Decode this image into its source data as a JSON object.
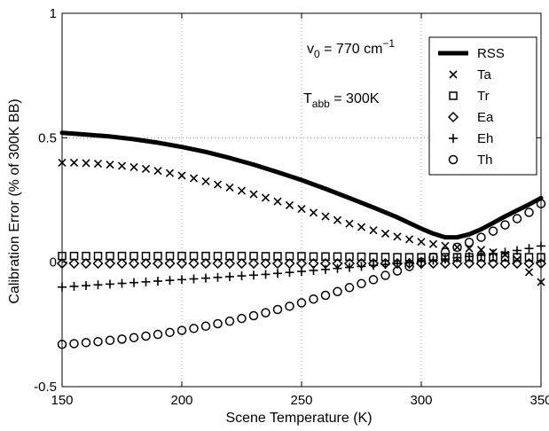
{
  "chart_data": {
    "type": "scatter",
    "title": "",
    "xlabel": "Scene Temperature (K)",
    "ylabel": "Calibration Error (% of 300K BB)",
    "xlim": [
      150,
      350
    ],
    "ylim": [
      -0.5,
      1
    ],
    "xticks": [
      "150",
      "200",
      "250",
      "300",
      "350"
    ],
    "yticks": [
      "-0.5",
      "0",
      "0.5",
      "1"
    ],
    "grid": "dotted",
    "legend": {
      "placement": "top-right",
      "entries": [
        "RSS",
        "Ta",
        "Tr",
        "Ea",
        "Eh",
        "Th"
      ]
    },
    "annotations": {
      "nu_symbol": "v",
      "nu_sub": "0",
      "nu_value": " = 770 cm",
      "nu_sup": "−1",
      "tabb_symbol": "T",
      "tabb_sub": "abb",
      "tabb_value": " = 300K"
    },
    "x": [
      150,
      155,
      160,
      165,
      170,
      175,
      180,
      185,
      190,
      195,
      200,
      205,
      210,
      215,
      220,
      225,
      230,
      235,
      240,
      245,
      250,
      255,
      260,
      265,
      270,
      275,
      280,
      285,
      290,
      295,
      300,
      305,
      310,
      315,
      320,
      325,
      330,
      335,
      340,
      345,
      350
    ],
    "series": [
      {
        "name": "RSS",
        "style": "line",
        "x": [
          150,
          160,
          170,
          180,
          190,
          200,
          210,
          220,
          230,
          240,
          250,
          260,
          270,
          280,
          290,
          300,
          305,
          310,
          315,
          320,
          325,
          330,
          335,
          340,
          345,
          350
        ],
        "values": [
          0.52,
          0.513,
          0.505,
          0.494,
          0.48,
          0.463,
          0.443,
          0.419,
          0.392,
          0.362,
          0.33,
          0.295,
          0.258,
          0.22,
          0.18,
          0.135,
          0.115,
          0.1,
          0.1,
          0.112,
          0.132,
          0.158,
          0.184,
          0.208,
          0.232,
          0.258
        ]
      },
      {
        "name": "Ta",
        "marker": "x",
        "values": [
          0.4,
          0.4,
          0.398,
          0.396,
          0.392,
          0.387,
          0.382,
          0.375,
          0.367,
          0.358,
          0.348,
          0.337,
          0.325,
          0.312,
          0.3,
          0.287,
          0.273,
          0.259,
          0.244,
          0.229,
          0.214,
          0.199,
          0.184,
          0.169,
          0.155,
          0.141,
          0.128,
          0.115,
          0.103,
          0.092,
          0.082,
          0.073,
          0.066,
          0.06,
          0.055,
          0.05,
          0.04,
          0.03,
          0.01,
          -0.04,
          -0.08
        ]
      },
      {
        "name": "Tr",
        "marker": "square",
        "values": [
          0.025,
          0.025,
          0.025,
          0.025,
          0.025,
          0.025,
          0.025,
          0.025,
          0.025,
          0.025,
          0.025,
          0.025,
          0.025,
          0.025,
          0.025,
          0.025,
          0.025,
          0.024,
          0.024,
          0.024,
          0.024,
          0.023,
          0.023,
          0.023,
          0.022,
          0.022,
          0.021,
          0.021,
          0.02,
          0.02,
          0.02,
          0.02,
          0.02,
          0.02,
          0.02,
          0.02,
          0.02,
          0.02,
          0.02,
          0.02,
          0.02
        ]
      },
      {
        "name": "Ea",
        "marker": "diamond",
        "values": [
          -0.005,
          -0.005,
          -0.005,
          -0.005,
          -0.005,
          -0.005,
          -0.005,
          -0.005,
          -0.005,
          -0.005,
          -0.005,
          -0.005,
          -0.005,
          -0.005,
          -0.005,
          -0.005,
          -0.005,
          -0.005,
          -0.005,
          -0.005,
          -0.005,
          -0.005,
          -0.005,
          -0.005,
          -0.005,
          -0.005,
          -0.005,
          -0.005,
          -0.005,
          -0.005,
          -0.005,
          -0.005,
          -0.005,
          -0.005,
          -0.005,
          -0.005,
          -0.005,
          -0.005,
          -0.005,
          -0.005,
          -0.005
        ]
      },
      {
        "name": "Eh",
        "marker": "plus",
        "values": [
          -0.1,
          -0.097,
          -0.094,
          -0.091,
          -0.088,
          -0.085,
          -0.082,
          -0.079,
          -0.076,
          -0.073,
          -0.07,
          -0.067,
          -0.064,
          -0.061,
          -0.058,
          -0.055,
          -0.052,
          -0.049,
          -0.045,
          -0.041,
          -0.037,
          -0.033,
          -0.029,
          -0.025,
          -0.021,
          -0.017,
          -0.013,
          -0.009,
          -0.005,
          -0.001,
          0.003,
          0.008,
          0.013,
          0.018,
          0.023,
          0.028,
          0.034,
          0.04,
          0.047,
          0.055,
          0.065
        ]
      },
      {
        "name": "Th",
        "marker": "circle",
        "values": [
          -0.33,
          -0.327,
          -0.323,
          -0.319,
          -0.314,
          -0.309,
          -0.303,
          -0.297,
          -0.29,
          -0.282,
          -0.274,
          -0.266,
          -0.257,
          -0.247,
          -0.237,
          -0.226,
          -0.215,
          -0.203,
          -0.19,
          -0.177,
          -0.163,
          -0.148,
          -0.133,
          -0.118,
          -0.102,
          -0.086,
          -0.07,
          -0.053,
          -0.035,
          -0.017,
          0.0,
          0.02,
          0.04,
          0.06,
          0.08,
          0.1,
          0.125,
          0.15,
          0.175,
          0.2,
          0.235
        ]
      }
    ]
  }
}
